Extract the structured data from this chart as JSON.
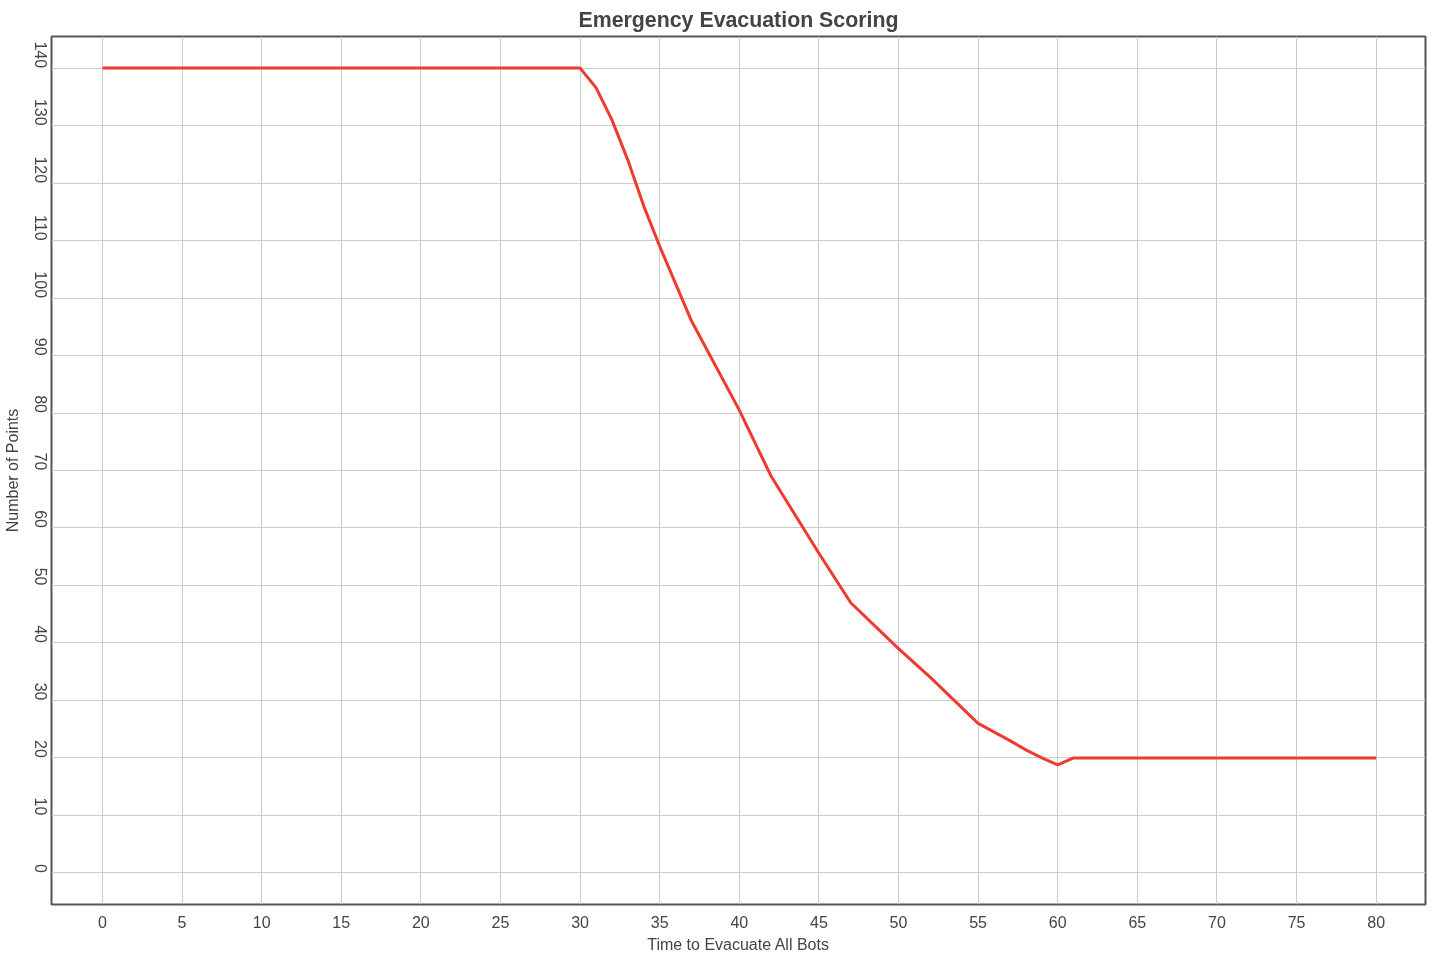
{
  "chart_data": {
    "type": "line",
    "title": "Emergency Evacuation Scoring",
    "xlabel": "Time to Evacuate All Bots",
    "ylabel": "Number of Points",
    "x": [
      0,
      30,
      31,
      32,
      33,
      34,
      35,
      37,
      40,
      42,
      45,
      47,
      50,
      52,
      55,
      57,
      58,
      59,
      60,
      61,
      80
    ],
    "series": [
      {
        "color": "#ee3b2f",
        "values": [
          140,
          140,
          136.6,
          131,
          124,
          116,
          109,
          96,
          80.5,
          69,
          55.6,
          47,
          39,
          34,
          26,
          23,
          21.4,
          20,
          18.8,
          20,
          20
        ]
      }
    ],
    "xlim": [
      -3.2,
      83.1
    ],
    "ylim": [
      -5.5,
      145.5
    ],
    "xticks": [
      0,
      5,
      10,
      15,
      20,
      25,
      30,
      35,
      40,
      45,
      50,
      55,
      60,
      65,
      70,
      75,
      80
    ],
    "yticks": [
      0,
      10,
      20,
      30,
      40,
      50,
      60,
      70,
      80,
      90,
      100,
      110,
      120,
      130,
      140
    ],
    "grid": true,
    "marker": "none",
    "line_style": "solid"
  }
}
